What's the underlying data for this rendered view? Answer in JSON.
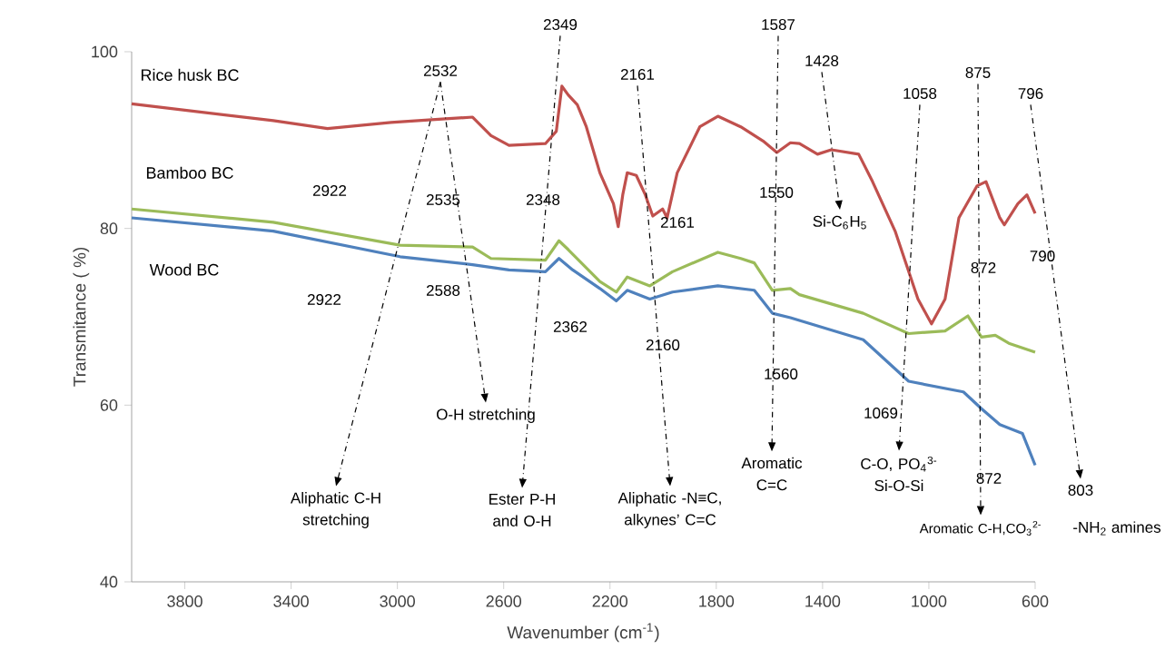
{
  "chart_data": {
    "type": "line",
    "xlabel": "Wavenumber (cm$^{-1}$)",
    "ylabel": "Transmitance ( %)",
    "xlim": [
      4000,
      600
    ],
    "ylim": [
      40,
      100
    ],
    "xticks": [
      3800,
      3400,
      3000,
      2600,
      2200,
      1800,
      1400,
      1000,
      600
    ],
    "yticks": [
      40,
      60,
      80,
      100
    ],
    "grid": false,
    "legend": false,
    "marker": "none",
    "line_style": "solid",
    "series": [
      {
        "name": "Rice husk BC",
        "color": "#c0504d",
        "x": [
          4000,
          3467,
          3263,
          3024,
          2819,
          2717,
          2648,
          2580,
          2443,
          2402,
          2381,
          2357,
          2323,
          2289,
          2238,
          2187,
          2169,
          2152,
          2135,
          2101,
          2067,
          2039,
          2002,
          1985,
          1947,
          1862,
          1794,
          1708,
          1624,
          1572,
          1521,
          1487,
          1419,
          1367,
          1264,
          1212,
          1127,
          1041,
          990,
          939,
          887,
          819,
          785,
          733,
          716,
          665,
          631,
          600
        ],
        "values": [
          94.1,
          92.2,
          91.3,
          92.0,
          92.4,
          92.6,
          90.5,
          89.4,
          89.6,
          91.0,
          96.1,
          95.1,
          94.0,
          91.5,
          86.3,
          82.8,
          80.2,
          83.8,
          86.3,
          86.0,
          83.8,
          81.4,
          82.2,
          81.2,
          86.3,
          91.5,
          92.7,
          91.5,
          89.9,
          88.6,
          89.7,
          89.6,
          88.4,
          88.9,
          88.4,
          85.3,
          79.7,
          72.0,
          69.2,
          72.0,
          81.2,
          84.8,
          85.3,
          81.2,
          80.4,
          82.8,
          83.8,
          81.7
        ]
      },
      {
        "name": "Bamboo BC",
        "color": "#9bbb59",
        "x": [
          4000,
          3467,
          2990,
          2717,
          2648,
          2443,
          2392,
          2357,
          2238,
          2176,
          2135,
          2050,
          1965,
          1794,
          1708,
          1657,
          1589,
          1521,
          1487,
          1247,
          1076,
          939,
          853,
          802,
          750,
          699,
          600
        ],
        "values": [
          82.2,
          80.7,
          78.1,
          77.9,
          76.6,
          76.4,
          78.6,
          77.6,
          74.0,
          72.8,
          74.5,
          73.5,
          75.1,
          77.3,
          76.6,
          76.1,
          73.0,
          73.2,
          72.5,
          70.4,
          68.1,
          68.4,
          70.1,
          67.7,
          67.9,
          67.0,
          66.0
        ]
      },
      {
        "name": "Wood BC",
        "color": "#4f81bd",
        "x": [
          4000,
          3467,
          2990,
          2717,
          2580,
          2443,
          2392,
          2340,
          2238,
          2176,
          2135,
          2050,
          1965,
          1794,
          1657,
          1589,
          1521,
          1247,
          1076,
          870,
          802,
          733,
          648,
          600
        ],
        "values": [
          81.2,
          79.7,
          76.8,
          75.9,
          75.3,
          75.1,
          76.6,
          75.3,
          73.2,
          71.8,
          73.0,
          72.0,
          72.8,
          73.5,
          73.0,
          70.4,
          69.9,
          67.4,
          62.7,
          61.5,
          59.6,
          57.8,
          56.8,
          53.2
        ]
      }
    ],
    "annotations": [
      "2349",
      "1587",
      "1428",
      "2161",
      "2532",
      "1058",
      "875",
      "796",
      "2922",
      "2535",
      "2348",
      "2161",
      "1550",
      "Si-C$_{6}$H$_{5}$",
      "872",
      "790",
      "2922",
      "2588",
      "2362",
      "2160",
      "1560",
      "1069",
      "872",
      "803",
      "O-H stretching",
      "Aliphatic C-H stretching",
      "Ester P-H and O-H",
      "Aliphatic -N≡C, alkynes’ C=C",
      "Aromatic C=C",
      "C-O, PO$_{4}$$^{3-}$ Si-O-Si",
      "Aromatic C-H,CO$_{3}$$^{2-}$",
      "-NH$_{2}$ amines"
    ]
  }
}
